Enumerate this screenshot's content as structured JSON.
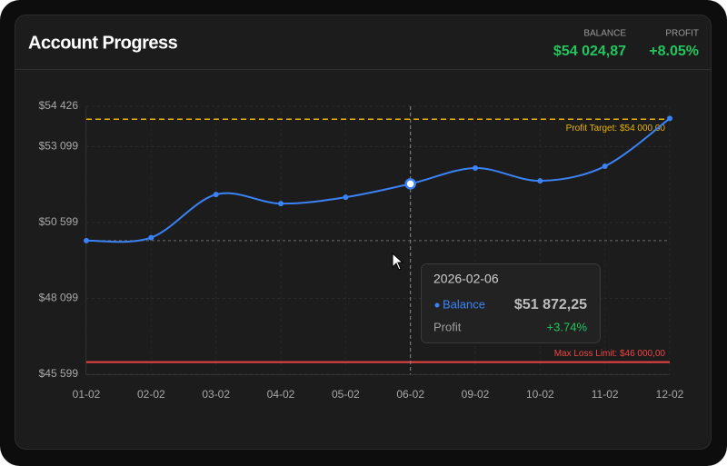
{
  "header": {
    "title": "Account Progress",
    "stats": [
      {
        "label": "BALANCE",
        "value": "$54 024,87"
      },
      {
        "label": "PROFIT",
        "value": "+8.05%"
      }
    ]
  },
  "chart_data": {
    "type": "line",
    "categories": [
      "01-02",
      "02-02",
      "03-02",
      "04-02",
      "05-02",
      "06-02",
      "09-02",
      "10-02",
      "11-02",
      "12-02"
    ],
    "series": [
      {
        "name": "Balance",
        "color": "#3b82f6",
        "values": [
          50000,
          50100,
          51520,
          51220,
          51430,
          51872.25,
          52390,
          51970,
          52450,
          54024.87
        ]
      }
    ],
    "ylim": [
      45599,
      54426
    ],
    "yticks": [
      {
        "value": 45599,
        "label": "$45 599"
      },
      {
        "value": 48099,
        "label": "$48 099"
      },
      {
        "value": 50599,
        "label": "$50 599"
      },
      {
        "value": 53099,
        "label": "$53 099"
      },
      {
        "value": 54426,
        "label": "$54 426"
      }
    ],
    "grid": true,
    "reference_lines": [
      {
        "value": 54000,
        "label": "Profit Target: $54 000,00",
        "color": "#eab308",
        "dashed": true
      },
      {
        "value": 46000,
        "label": "Max Loss Limit: $46 000,00",
        "color": "#ef4444",
        "dashed": false
      }
    ],
    "active_index": 5,
    "tooltip": {
      "date": "2026-02-06",
      "series": "Balance",
      "value": "$51 872,25",
      "profit_label": "Profit",
      "profit": "+3.74%"
    }
  }
}
